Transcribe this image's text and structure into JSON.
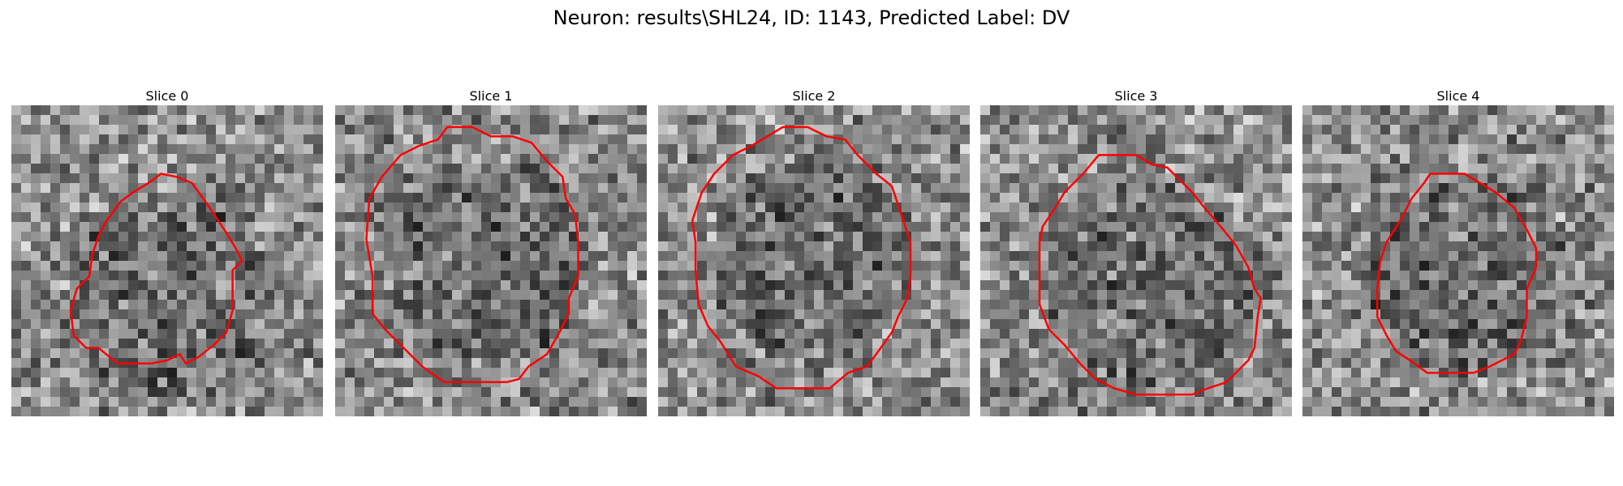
{
  "title": "Neuron: results\\SHL24, ID: 1143, Predicted Label: DV",
  "contour_color": "#ff0000",
  "panels": [
    {
      "label": "Slice 0",
      "dark_center": [
        0.51,
        0.62
      ],
      "contour": [
        [
          0.53,
          0.23
        ],
        [
          0.58,
          0.25
        ],
        [
          0.63,
          0.32
        ],
        [
          0.69,
          0.41
        ],
        [
          0.72,
          0.46
        ],
        [
          0.74,
          0.5
        ],
        [
          0.71,
          0.53
        ],
        [
          0.71,
          0.66
        ],
        [
          0.69,
          0.73
        ],
        [
          0.65,
          0.77
        ],
        [
          0.6,
          0.81
        ],
        [
          0.56,
          0.83
        ],
        [
          0.54,
          0.8
        ],
        [
          0.5,
          0.82
        ],
        [
          0.45,
          0.83
        ],
        [
          0.34,
          0.83
        ],
        [
          0.28,
          0.78
        ],
        [
          0.24,
          0.78
        ],
        [
          0.2,
          0.74
        ],
        [
          0.19,
          0.66
        ],
        [
          0.21,
          0.59
        ],
        [
          0.25,
          0.55
        ],
        [
          0.26,
          0.48
        ],
        [
          0.28,
          0.42
        ],
        [
          0.3,
          0.38
        ],
        [
          0.35,
          0.31
        ],
        [
          0.39,
          0.28
        ],
        [
          0.44,
          0.25
        ],
        [
          0.48,
          0.22
        ]
      ]
    },
    {
      "label": "Slice 1",
      "dark_center": [
        0.5,
        0.5
      ],
      "contour": [
        [
          0.36,
          0.07
        ],
        [
          0.44,
          0.07
        ],
        [
          0.5,
          0.1
        ],
        [
          0.57,
          0.1
        ],
        [
          0.63,
          0.12
        ],
        [
          0.68,
          0.18
        ],
        [
          0.73,
          0.23
        ],
        [
          0.74,
          0.3
        ],
        [
          0.77,
          0.35
        ],
        [
          0.78,
          0.44
        ],
        [
          0.78,
          0.55
        ],
        [
          0.75,
          0.62
        ],
        [
          0.75,
          0.67
        ],
        [
          0.72,
          0.73
        ],
        [
          0.68,
          0.8
        ],
        [
          0.62,
          0.84
        ],
        [
          0.59,
          0.88
        ],
        [
          0.55,
          0.89
        ],
        [
          0.45,
          0.89
        ],
        [
          0.35,
          0.89
        ],
        [
          0.28,
          0.84
        ],
        [
          0.23,
          0.79
        ],
        [
          0.16,
          0.72
        ],
        [
          0.12,
          0.67
        ],
        [
          0.12,
          0.55
        ],
        [
          0.1,
          0.43
        ],
        [
          0.11,
          0.3
        ],
        [
          0.15,
          0.23
        ],
        [
          0.21,
          0.16
        ],
        [
          0.27,
          0.13
        ],
        [
          0.33,
          0.11
        ]
      ]
    },
    {
      "label": "Slice 2",
      "dark_center": [
        0.5,
        0.5
      ],
      "contour": [
        [
          0.4,
          0.07
        ],
        [
          0.48,
          0.07
        ],
        [
          0.54,
          0.1
        ],
        [
          0.6,
          0.11
        ],
        [
          0.64,
          0.16
        ],
        [
          0.7,
          0.22
        ],
        [
          0.75,
          0.26
        ],
        [
          0.78,
          0.35
        ],
        [
          0.81,
          0.44
        ],
        [
          0.81,
          0.55
        ],
        [
          0.8,
          0.62
        ],
        [
          0.77,
          0.68
        ],
        [
          0.75,
          0.73
        ],
        [
          0.7,
          0.8
        ],
        [
          0.67,
          0.84
        ],
        [
          0.61,
          0.86
        ],
        [
          0.55,
          0.91
        ],
        [
          0.45,
          0.91
        ],
        [
          0.38,
          0.91
        ],
        [
          0.32,
          0.87
        ],
        [
          0.25,
          0.84
        ],
        [
          0.2,
          0.76
        ],
        [
          0.16,
          0.71
        ],
        [
          0.13,
          0.64
        ],
        [
          0.12,
          0.53
        ],
        [
          0.12,
          0.44
        ],
        [
          0.11,
          0.37
        ],
        [
          0.14,
          0.28
        ],
        [
          0.18,
          0.22
        ],
        [
          0.24,
          0.16
        ],
        [
          0.3,
          0.13
        ],
        [
          0.35,
          0.1
        ]
      ]
    },
    {
      "label": "Slice 3",
      "dark_center": [
        0.55,
        0.58
      ],
      "contour": [
        [
          0.38,
          0.16
        ],
        [
          0.5,
          0.16
        ],
        [
          0.55,
          0.19
        ],
        [
          0.6,
          0.2
        ],
        [
          0.68,
          0.28
        ],
        [
          0.72,
          0.33
        ],
        [
          0.78,
          0.4
        ],
        [
          0.82,
          0.45
        ],
        [
          0.86,
          0.52
        ],
        [
          0.88,
          0.59
        ],
        [
          0.9,
          0.62
        ],
        [
          0.89,
          0.68
        ],
        [
          0.88,
          0.78
        ],
        [
          0.86,
          0.82
        ],
        [
          0.82,
          0.86
        ],
        [
          0.79,
          0.89
        ],
        [
          0.73,
          0.91
        ],
        [
          0.68,
          0.93
        ],
        [
          0.6,
          0.93
        ],
        [
          0.5,
          0.93
        ],
        [
          0.43,
          0.91
        ],
        [
          0.37,
          0.88
        ],
        [
          0.32,
          0.83
        ],
        [
          0.27,
          0.77
        ],
        [
          0.22,
          0.72
        ],
        [
          0.19,
          0.64
        ],
        [
          0.19,
          0.55
        ],
        [
          0.19,
          0.44
        ],
        [
          0.2,
          0.39
        ],
        [
          0.24,
          0.33
        ],
        [
          0.27,
          0.28
        ],
        [
          0.33,
          0.22
        ]
      ]
    },
    {
      "label": "Slice 4",
      "dark_center": [
        0.52,
        0.55
      ],
      "contour": [
        [
          0.41,
          0.22
        ],
        [
          0.52,
          0.22
        ],
        [
          0.57,
          0.25
        ],
        [
          0.62,
          0.28
        ],
        [
          0.68,
          0.33
        ],
        [
          0.72,
          0.4
        ],
        [
          0.75,
          0.46
        ],
        [
          0.75,
          0.52
        ],
        [
          0.72,
          0.59
        ],
        [
          0.72,
          0.68
        ],
        [
          0.7,
          0.76
        ],
        [
          0.68,
          0.8
        ],
        [
          0.64,
          0.82
        ],
        [
          0.6,
          0.84
        ],
        [
          0.55,
          0.86
        ],
        [
          0.5,
          0.86
        ],
        [
          0.4,
          0.86
        ],
        [
          0.36,
          0.83
        ],
        [
          0.3,
          0.79
        ],
        [
          0.27,
          0.74
        ],
        [
          0.24,
          0.68
        ],
        [
          0.24,
          0.59
        ],
        [
          0.25,
          0.5
        ],
        [
          0.27,
          0.44
        ],
        [
          0.32,
          0.36
        ],
        [
          0.35,
          0.3
        ],
        [
          0.39,
          0.25
        ]
      ]
    }
  ]
}
